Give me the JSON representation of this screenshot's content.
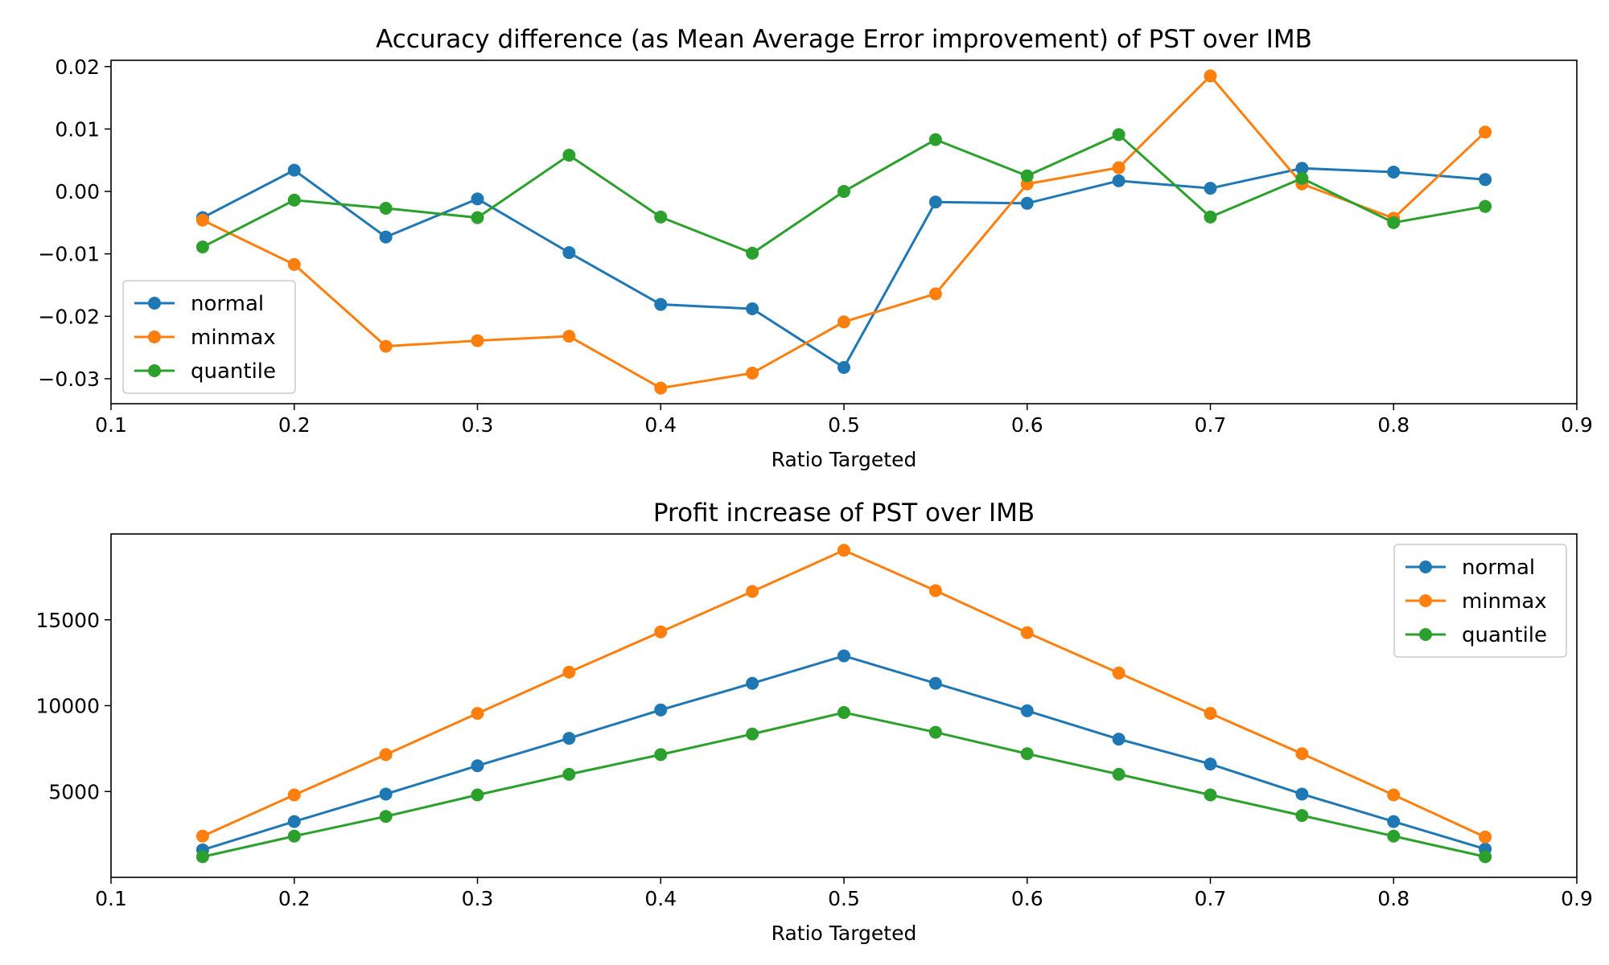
{
  "chart_data": [
    {
      "type": "line",
      "title": "Accuracy difference (as Mean Average Error improvement) of PST over IMB",
      "xlabel": "Ratio Targeted",
      "ylabel": "",
      "xlim": [
        0.1,
        0.9
      ],
      "ylim": [
        -0.034,
        0.021
      ],
      "xticks": [
        0.1,
        0.2,
        0.3,
        0.4,
        0.5,
        0.6,
        0.7,
        0.8,
        0.9
      ],
      "xtick_labels": [
        "0.1",
        "0.2",
        "0.3",
        "0.4",
        "0.5",
        "0.6",
        "0.7",
        "0.8",
        "0.9"
      ],
      "yticks": [
        -0.03,
        -0.02,
        -0.01,
        0.0,
        0.01,
        0.02
      ],
      "ytick_labels": [
        "−0.03",
        "−0.02",
        "−0.01",
        "0.00",
        "0.01",
        "0.02"
      ],
      "grid": false,
      "legend_position": "lower-left",
      "x": [
        0.15,
        0.2,
        0.25,
        0.3,
        0.35,
        0.4,
        0.45,
        0.5,
        0.55,
        0.6,
        0.65,
        0.7,
        0.75,
        0.8,
        0.85
      ],
      "series": [
        {
          "name": "normal",
          "color": "#1f77b4",
          "values": [
            -0.0042,
            0.0034,
            -0.0073,
            -0.0012,
            -0.0098,
            -0.0181,
            -0.0188,
            -0.0282,
            -0.0017,
            -0.0019,
            0.0017,
            0.0005,
            0.0037,
            0.0031,
            0.0019
          ]
        },
        {
          "name": "minmax",
          "color": "#ff7f0e",
          "values": [
            -0.0046,
            -0.0117,
            -0.0248,
            -0.0239,
            -0.0232,
            -0.0315,
            -0.0291,
            -0.0209,
            -0.0164,
            0.0012,
            0.0038,
            0.0185,
            0.0012,
            -0.0043,
            0.0095
          ]
        },
        {
          "name": "quantile",
          "color": "#2ca02c",
          "values": [
            -0.0089,
            -0.0014,
            -0.0027,
            -0.0042,
            0.0058,
            -0.0041,
            -0.0099,
            0.0,
            0.0083,
            0.0025,
            0.0091,
            -0.0041,
            0.0021,
            -0.005,
            -0.0024
          ]
        }
      ]
    },
    {
      "type": "line",
      "title": "Profit increase of PST over IMB",
      "xlabel": "Ratio Targeted",
      "ylabel": "",
      "xlim": [
        0.1,
        0.9
      ],
      "ylim": [
        0,
        20000
      ],
      "xticks": [
        0.1,
        0.2,
        0.3,
        0.4,
        0.5,
        0.6,
        0.7,
        0.8,
        0.9
      ],
      "xtick_labels": [
        "0.1",
        "0.2",
        "0.3",
        "0.4",
        "0.5",
        "0.6",
        "0.7",
        "0.8",
        "0.9"
      ],
      "yticks": [
        5000,
        10000,
        15000
      ],
      "ytick_labels": [
        "5000",
        "10000",
        "15000"
      ],
      "grid": false,
      "legend_position": "upper-right",
      "x": [
        0.15,
        0.2,
        0.25,
        0.3,
        0.35,
        0.4,
        0.45,
        0.5,
        0.55,
        0.6,
        0.65,
        0.7,
        0.75,
        0.8,
        0.85
      ],
      "series": [
        {
          "name": "normal",
          "color": "#1f77b4",
          "values": [
            1600,
            3250,
            4850,
            6500,
            8100,
            9750,
            11300,
            12900,
            11300,
            9700,
            8050,
            6600,
            4850,
            3250,
            1650
          ]
        },
        {
          "name": "minmax",
          "color": "#ff7f0e",
          "values": [
            2400,
            4800,
            7150,
            9550,
            11950,
            14300,
            16650,
            19050,
            16700,
            14250,
            11900,
            9550,
            7200,
            4800,
            2350
          ]
        },
        {
          "name": "quantile",
          "color": "#2ca02c",
          "values": [
            1200,
            2400,
            3550,
            4800,
            6000,
            7150,
            8350,
            9600,
            8450,
            7200,
            6000,
            4800,
            3600,
            2400,
            1200
          ]
        }
      ]
    }
  ]
}
